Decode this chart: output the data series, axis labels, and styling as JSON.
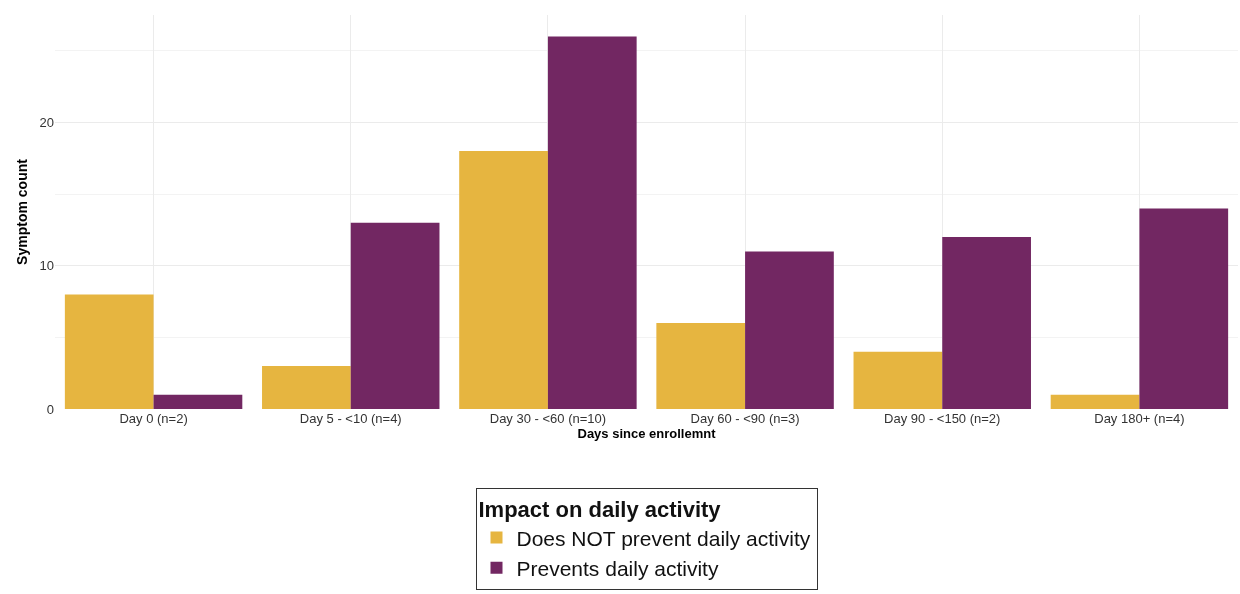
{
  "chart_data": {
    "type": "bar",
    "xlabel": "Days since enrollemnt",
    "ylabel": "Symptom count",
    "legend_title": "Impact on daily activity",
    "categories": [
      "Day 0 (n=2)",
      "Day 5 - <10 (n=4)",
      "Day 30 - <60 (n=10)",
      "Day 60 - <90 (n=3)",
      "Day 90 - <150 (n=2)",
      "Day 180+ (n=4)"
    ],
    "series": [
      {
        "name": "Does NOT prevent daily activity",
        "color": "#e6b540",
        "values": [
          8,
          3,
          18,
          6,
          4,
          1
        ]
      },
      {
        "name": "Prevents daily activity",
        "color": "#722762",
        "values": [
          1,
          13,
          26,
          11,
          12,
          14
        ]
      }
    ],
    "ylim": [
      0,
      27.5
    ],
    "yticks": [
      0,
      10,
      20
    ],
    "grid": true,
    "legend": "bottom"
  }
}
